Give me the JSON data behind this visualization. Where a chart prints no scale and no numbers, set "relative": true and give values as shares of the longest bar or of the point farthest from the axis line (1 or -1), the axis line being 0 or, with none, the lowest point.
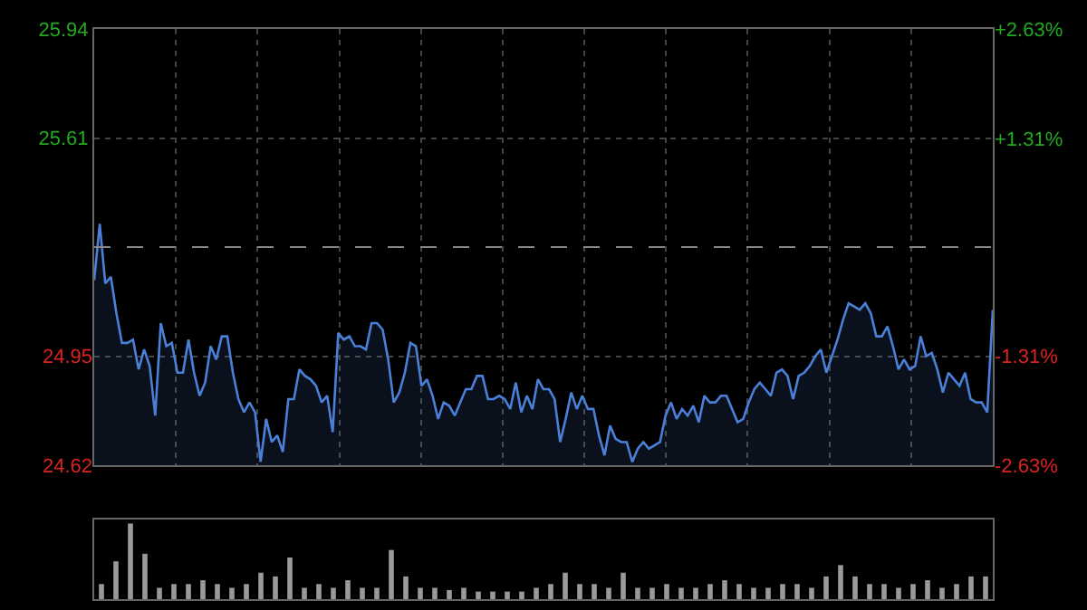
{
  "chart_data": [
    {
      "type": "area",
      "categories": [
        null,
        null,
        null,
        null,
        null,
        null,
        null,
        null,
        null,
        null,
        null,
        null,
        null,
        null,
        null,
        null,
        null,
        null,
        null,
        null,
        null,
        null,
        null,
        null,
        null,
        null,
        null,
        null,
        null,
        null,
        null,
        null,
        null,
        null,
        null,
        null,
        null,
        null,
        null,
        null,
        null,
        null,
        null,
        null,
        null,
        null,
        null,
        null,
        null,
        null,
        null,
        null,
        null,
        null,
        null,
        null,
        null,
        null,
        null,
        null,
        null,
        null,
        null,
        null,
        null,
        null,
        null,
        null,
        null,
        null,
        null,
        null,
        null,
        null,
        null,
        null,
        null,
        null,
        null,
        null,
        null,
        null,
        null,
        null,
        null,
        null,
        null,
        null,
        null,
        null,
        null,
        null,
        null,
        null,
        null,
        null,
        null,
        null,
        null,
        null,
        null,
        null,
        null,
        null,
        null,
        null,
        null,
        null,
        null,
        null,
        null,
        null,
        null,
        null,
        null,
        null,
        null,
        null,
        null,
        null,
        null,
        null,
        null,
        null,
        null,
        null,
        null,
        null,
        null,
        null,
        null,
        null,
        null,
        null,
        null,
        null,
        null,
        null,
        null,
        null,
        null,
        null,
        null,
        null,
        null,
        null,
        null,
        null,
        null,
        null,
        null,
        null,
        null,
        null,
        null,
        null,
        null,
        null,
        null,
        null,
        null,
        null,
        null
      ],
      "series": [
        {
          "color": "#4a80d8",
          "values": [
            25.18,
            25.35,
            25.17,
            25.19,
            25.08,
            24.99,
            24.99,
            25.0,
            24.91,
            24.97,
            24.92,
            24.77,
            25.05,
            24.98,
            24.99,
            24.9,
            24.9,
            25.0,
            24.9,
            24.83,
            24.87,
            24.98,
            24.94,
            25.01,
            25.01,
            24.9,
            24.82,
            24.78,
            24.81,
            24.78,
            24.63,
            24.76,
            24.69,
            24.71,
            24.66,
            24.82,
            24.82,
            24.91,
            24.89,
            24.88,
            24.86,
            24.81,
            24.83,
            24.72,
            25.02,
            25.0,
            25.01,
            24.98,
            24.98,
            24.97,
            25.05,
            25.05,
            25.03,
            24.94,
            24.81,
            24.84,
            24.9,
            24.99,
            24.98,
            24.86,
            24.88,
            24.83,
            24.76,
            24.81,
            24.8,
            24.77,
            24.81,
            24.85,
            24.85,
            24.89,
            24.89,
            24.82,
            24.82,
            24.83,
            24.82,
            24.79,
            24.87,
            24.78,
            24.83,
            24.79,
            24.88,
            24.85,
            24.85,
            24.82,
            24.69,
            24.76,
            24.84,
            24.79,
            24.83,
            24.79,
            24.79,
            24.71,
            24.65,
            24.74,
            24.7,
            24.69,
            24.69,
            24.63,
            24.67,
            24.69,
            24.67,
            24.68,
            24.69,
            24.77,
            24.81,
            24.76,
            24.79,
            24.77,
            24.8,
            24.75,
            24.83,
            24.81,
            24.81,
            24.83,
            24.83,
            24.79,
            24.75,
            24.76,
            24.81,
            24.85,
            24.87,
            24.85,
            24.83,
            24.9,
            24.91,
            24.89,
            24.82,
            24.89,
            24.9,
            24.92,
            24.95,
            24.97,
            24.9,
            24.95,
            25.0,
            25.06,
            25.11,
            25.1,
            25.09,
            25.11,
            25.08,
            25.01,
            25.01,
            25.04,
            24.98,
            24.91,
            24.94,
            24.91,
            24.92,
            25.01,
            24.95,
            24.96,
            24.91,
            24.84,
            24.9,
            24.88,
            24.86,
            24.9,
            24.82,
            24.81,
            24.81,
            24.78,
            25.09
          ]
        }
      ],
      "ylim": [
        24.62,
        25.94
      ],
      "yticks": [
        25.94,
        25.61,
        24.95,
        24.62
      ],
      "y2lim": [
        -2.63,
        2.63
      ],
      "y2ticks": [
        {
          "value": 2.63,
          "label": "+2.63%"
        },
        {
          "value": 1.31,
          "label": "+1.31%"
        },
        {
          "value": -1.31,
          "label": "-1.31%"
        },
        {
          "value": -2.63,
          "label": "-2.63%"
        }
      ],
      "ref_lines": [
        {
          "axis": "y",
          "value": 25.28,
          "color": "#888888",
          "line_style": "dashed"
        }
      ],
      "grid": true,
      "marker": "none",
      "line_style": "solid"
    },
    {
      "type": "bar",
      "relative": true,
      "color": "#9a9a9a",
      "categories": [
        null,
        null,
        null,
        null,
        null,
        null,
        null,
        null,
        null,
        null,
        null,
        null,
        null,
        null,
        null,
        null,
        null,
        null,
        null,
        null,
        null,
        null,
        null,
        null,
        null,
        null,
        null,
        null,
        null,
        null,
        null,
        null,
        null,
        null,
        null,
        null,
        null,
        null,
        null,
        null,
        null,
        null,
        null,
        null,
        null,
        null,
        null,
        null,
        null,
        null,
        null,
        null,
        null,
        null,
        null,
        null,
        null,
        null,
        null,
        null,
        null,
        null
      ],
      "values": [
        0.2,
        0.5,
        1.0,
        0.6,
        0.15,
        0.2,
        0.2,
        0.25,
        0.2,
        0.15,
        0.2,
        0.35,
        0.3,
        0.55,
        0.15,
        0.2,
        0.15,
        0.25,
        0.15,
        0.15,
        0.65,
        0.3,
        0.15,
        0.15,
        0.12,
        0.15,
        0.1,
        0.1,
        0.1,
        0.1,
        0.15,
        0.2,
        0.35,
        0.2,
        0.2,
        0.15,
        0.35,
        0.15,
        0.15,
        0.2,
        0.15,
        0.15,
        0.2,
        0.25,
        0.2,
        0.15,
        0.15,
        0.2,
        0.2,
        0.15,
        0.3,
        0.45,
        0.3,
        0.2,
        0.2,
        0.15,
        0.2,
        0.25,
        0.15,
        0.2,
        0.3,
        0.3
      ]
    }
  ]
}
